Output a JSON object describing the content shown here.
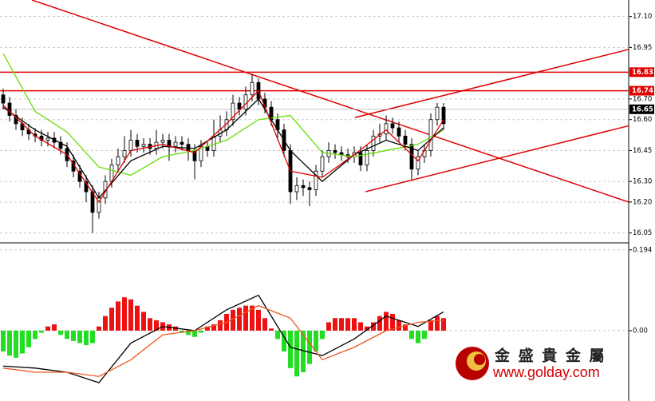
{
  "chart_data": [
    {
      "type": "candlestick",
      "open": [
        16.72,
        16.68,
        16.62,
        16.58,
        16.55,
        16.53,
        16.52,
        16.5,
        16.51,
        16.49,
        16.46,
        16.4,
        16.35,
        16.3,
        16.25,
        16.15,
        16.22,
        16.3,
        16.38,
        16.42,
        16.45,
        16.5,
        16.47,
        16.48,
        16.46,
        16.49,
        16.5,
        16.47,
        16.49,
        16.48,
        16.45,
        16.4,
        16.47,
        16.45,
        16.52,
        16.55,
        16.6,
        16.68,
        16.65,
        16.72,
        16.78,
        16.7,
        16.66,
        16.6,
        16.55,
        16.45,
        16.25,
        16.28,
        16.27,
        16.26,
        16.35,
        16.42,
        16.45,
        16.44,
        16.43,
        16.42,
        16.44,
        16.38,
        16.45,
        16.52,
        16.53,
        16.58,
        16.56,
        16.52,
        16.48,
        16.36,
        16.42,
        16.45,
        16.6,
        16.66
      ],
      "high": [
        16.75,
        16.71,
        16.65,
        16.61,
        16.58,
        16.56,
        16.55,
        16.54,
        16.54,
        16.52,
        16.49,
        16.43,
        16.38,
        16.33,
        16.28,
        16.25,
        16.33,
        16.41,
        16.46,
        16.52,
        16.55,
        16.53,
        16.51,
        16.51,
        16.55,
        16.53,
        16.53,
        16.52,
        16.52,
        16.51,
        16.48,
        16.5,
        16.5,
        16.6,
        16.62,
        16.64,
        16.72,
        16.71,
        16.76,
        16.82,
        16.8,
        16.73,
        16.69,
        16.63,
        16.58,
        16.48,
        16.32,
        16.31,
        16.3,
        16.38,
        16.45,
        16.49,
        16.48,
        16.47,
        16.46,
        16.47,
        16.47,
        16.48,
        16.55,
        16.58,
        16.62,
        16.61,
        16.59,
        16.55,
        16.51,
        16.45,
        16.48,
        16.63,
        16.68,
        16.68
      ],
      "low": [
        16.65,
        16.59,
        16.55,
        16.52,
        16.5,
        16.49,
        16.47,
        16.47,
        16.46,
        16.43,
        16.37,
        16.32,
        16.27,
        16.2,
        16.05,
        16.12,
        16.19,
        16.27,
        16.35,
        16.39,
        16.42,
        16.44,
        16.44,
        16.43,
        16.43,
        16.46,
        16.4,
        16.44,
        16.45,
        16.4,
        16.31,
        16.37,
        16.42,
        16.42,
        16.49,
        16.52,
        16.57,
        16.62,
        16.62,
        16.69,
        16.67,
        16.63,
        16.57,
        16.5,
        16.42,
        16.19,
        16.21,
        16.23,
        16.18,
        16.23,
        16.32,
        16.39,
        16.41,
        16.4,
        16.39,
        16.39,
        16.35,
        16.35,
        16.42,
        16.49,
        16.5,
        16.53,
        16.49,
        16.45,
        16.31,
        16.33,
        16.39,
        16.42,
        16.57,
        16.55
      ],
      "close": [
        16.68,
        16.62,
        16.58,
        16.55,
        16.53,
        16.52,
        16.5,
        16.51,
        16.49,
        16.46,
        16.4,
        16.35,
        16.3,
        16.25,
        16.15,
        16.22,
        16.3,
        16.38,
        16.42,
        16.45,
        16.5,
        16.47,
        16.48,
        16.46,
        16.49,
        16.5,
        16.47,
        16.49,
        16.48,
        16.45,
        16.4,
        16.47,
        16.45,
        16.52,
        16.55,
        16.6,
        16.68,
        16.65,
        16.72,
        16.78,
        16.7,
        16.66,
        16.6,
        16.55,
        16.45,
        16.25,
        16.28,
        16.27,
        16.26,
        16.35,
        16.42,
        16.45,
        16.44,
        16.43,
        16.42,
        16.44,
        16.38,
        16.45,
        16.52,
        16.53,
        16.58,
        16.56,
        16.52,
        16.48,
        16.36,
        16.42,
        16.45,
        16.6,
        16.66,
        16.58
      ],
      "up_color": "#ffffff",
      "down_color": "#000000",
      "wick_color": "#000000",
      "series": [
        {
          "color": "#66dd00",
          "x": [
            0,
            5,
            10,
            15,
            20,
            25,
            30,
            35,
            40,
            45,
            50,
            55,
            60,
            65,
            69
          ],
          "values": [
            16.92,
            16.64,
            16.54,
            16.37,
            16.33,
            16.42,
            16.45,
            16.5,
            16.6,
            16.62,
            16.44,
            16.42,
            16.45,
            16.48,
            16.55
          ]
        },
        {
          "color": "#000000",
          "x": [
            0,
            5,
            10,
            15,
            20,
            25,
            30,
            35,
            40,
            45,
            50,
            55,
            60,
            65,
            69
          ],
          "values": [
            16.66,
            16.55,
            16.47,
            16.22,
            16.4,
            16.47,
            16.46,
            16.55,
            16.7,
            16.45,
            16.3,
            16.43,
            16.5,
            16.45,
            16.56
          ]
        },
        {
          "color": "#dd0000",
          "x": [
            0,
            5,
            10,
            15,
            20,
            25,
            30,
            35,
            40,
            45,
            50,
            55,
            60,
            65,
            69
          ],
          "values": [
            16.67,
            16.52,
            16.43,
            16.2,
            16.45,
            16.48,
            16.44,
            16.58,
            16.74,
            16.35,
            16.32,
            16.43,
            16.55,
            16.4,
            16.6
          ]
        }
      ],
      "trendlines": [
        {
          "color": "#e00000",
          "x": [
            4.5,
            98
          ],
          "values": [
            17.18,
            16.2
          ]
        },
        {
          "color": "#e00000",
          "x": [
            55.1,
            98
          ],
          "values": [
            16.61,
            16.94
          ]
        },
        {
          "color": "#e00000",
          "x": [
            56.75,
            98
          ],
          "values": [
            16.25,
            16.57
          ]
        }
      ],
      "hlines": [
        {
          "value": 16.83,
          "label": "16.83",
          "color": "#e00000"
        },
        {
          "value": 16.74,
          "label": "16.74",
          "color": "#e00000"
        },
        {
          "value": 16.65,
          "label": "16.65",
          "color": "#000000"
        }
      ],
      "ylim": [
        16.01,
        17.18
      ],
      "yticks": [
        {
          "value": 17.1,
          "label": "17.10"
        },
        16.95,
        {
          "value": 16.7,
          "label": "16.70"
        },
        {
          "value": 16.6,
          "label": "16.60"
        },
        16.45,
        {
          "value": 16.3,
          "label": "16.30"
        },
        {
          "value": 16.2,
          "label": "16.20"
        },
        16.05
      ],
      "grid": true
    },
    {
      "type": "macd",
      "values": [
        -0.05,
        -0.06,
        -0.065,
        -0.055,
        -0.04,
        -0.02,
        -0.005,
        0.01,
        0.015,
        -0.01,
        -0.02,
        -0.025,
        -0.03,
        -0.035,
        -0.03,
        0.01,
        0.035,
        0.055,
        0.07,
        0.08,
        0.075,
        0.06,
        0.045,
        0.03,
        0.025,
        0.02,
        0.015,
        0.01,
        -0.005,
        -0.01,
        -0.015,
        -0.005,
        0.01,
        0.015,
        0.025,
        0.04,
        0.05,
        0.055,
        0.06,
        0.06,
        0.05,
        0.03,
        0.005,
        -0.02,
        -0.05,
        -0.09,
        -0.11,
        -0.1,
        -0.08,
        -0.05,
        -0.02,
        0.02,
        0.03,
        0.03,
        0.03,
        0.03,
        0.02,
        0.01,
        0.02,
        0.035,
        0.045,
        0.04,
        0.025,
        0.015,
        -0.02,
        -0.03,
        -0.02,
        0.025,
        0.035,
        0.03
      ],
      "up_color": "#ee1111",
      "down_color": "#22dd22",
      "series": [
        {
          "color": "#000000",
          "x": [
            0,
            5,
            10,
            15,
            20,
            25,
            30,
            35,
            40,
            45,
            50,
            55,
            60,
            65,
            69
          ],
          "values": [
            -0.085,
            -0.09,
            -0.1,
            -0.125,
            -0.03,
            0.01,
            0.0,
            0.05,
            0.085,
            -0.04,
            -0.06,
            -0.02,
            0.035,
            0.01,
            0.045
          ]
        },
        {
          "color": "#ee5522",
          "x": [
            0,
            5,
            10,
            15,
            20,
            25,
            30,
            35,
            40,
            45,
            50,
            55,
            60,
            65,
            69
          ],
          "values": [
            -0.09,
            -0.1,
            -0.1,
            -0.11,
            -0.07,
            -0.01,
            0.0,
            0.02,
            0.06,
            0.03,
            -0.07,
            -0.04,
            0.0,
            0.02,
            0.025
          ]
        }
      ],
      "ylim": [
        -0.169,
        0.207
      ],
      "yticks": [
        0.194,
        {
          "value": 0,
          "label": "0.00"
        }
      ],
      "grid": true
    }
  ],
  "logo": {
    "name": "金 盛 貴 金 屬",
    "url": "www.golday.com"
  }
}
